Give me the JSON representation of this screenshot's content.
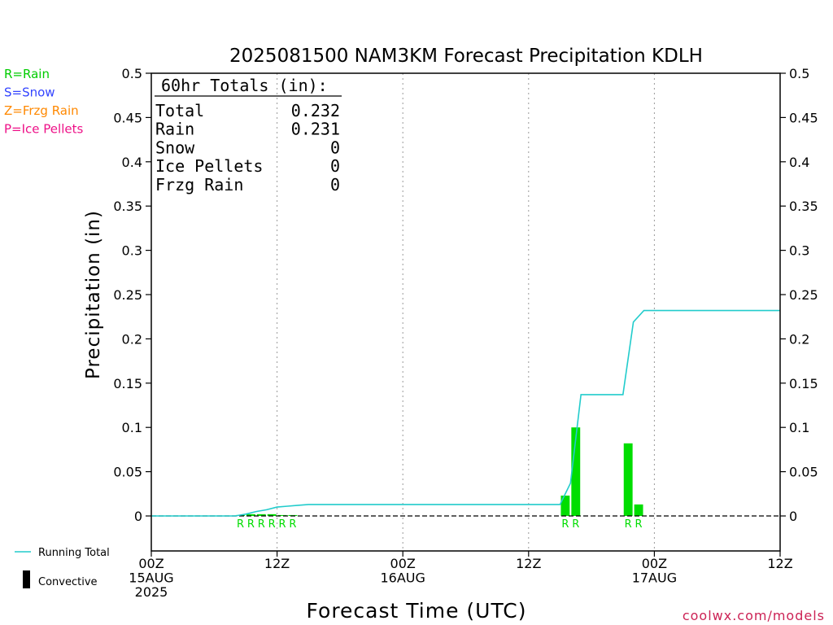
{
  "chart_data": {
    "type": "bar",
    "title": "2025081500 NAM3KM Forecast Precipitation KDLH",
    "xlabel": "Forecast Time (UTC)",
    "ylabel": "Precipitation (in)",
    "ylim": [
      -0.04,
      0.5
    ],
    "yticks": [
      "0.5",
      "0.45",
      "0.4",
      "0.35",
      "0.3",
      "0.25",
      "0.2",
      "0.15",
      "0.1",
      "0.05",
      "0"
    ],
    "ytick_values": [
      0.5,
      0.45,
      0.4,
      0.35,
      0.3,
      0.25,
      0.2,
      0.15,
      0.1,
      0.05,
      0
    ],
    "xlim_hours": [
      0,
      60
    ],
    "xticks": [
      {
        "hour": 0,
        "lines": [
          "00Z",
          "15AUG",
          "2025"
        ]
      },
      {
        "hour": 12,
        "lines": [
          "12Z"
        ]
      },
      {
        "hour": 24,
        "lines": [
          "00Z",
          "16AUG"
        ]
      },
      {
        "hour": 36,
        "lines": [
          "12Z"
        ]
      },
      {
        "hour": 48,
        "lines": [
          "00Z",
          "17AUG"
        ]
      },
      {
        "hour": 60,
        "lines": [
          "12Z"
        ]
      }
    ],
    "grid": "vertical dotted at 12Z/00Z",
    "type_legend": [
      {
        "label": "R=Rain",
        "color": "#00cc00"
      },
      {
        "label": "S=Snow",
        "color": "#3344ff"
      },
      {
        "label": "Z=Frzg Rain",
        "color": "#ff8800"
      },
      {
        "label": "P=Ice Pellets",
        "color": "#ee1188"
      }
    ],
    "series_legend": [
      {
        "label": "Running Total",
        "color": "#22cccc",
        "kind": "line"
      },
      {
        "label": "Convective",
        "color": "#000000",
        "kind": "bar"
      }
    ],
    "totals": {
      "header": "60hr Totals (in):",
      "rows": [
        {
          "label": "Total",
          "value": "0.232"
        },
        {
          "label": "Rain",
          "value": "0.231"
        },
        {
          "label": "Snow",
          "value": "0"
        },
        {
          "label": "Ice Pellets",
          "value": "0"
        },
        {
          "label": "Frzg Rain",
          "value": "0"
        }
      ]
    },
    "series": [
      {
        "name": "Rain",
        "kind": "bar",
        "color": "#00dd00",
        "hours": [
          9,
          10,
          11,
          12,
          13,
          14,
          40,
          41,
          46,
          47
        ],
        "values": [
          0.001,
          0.002,
          0.002,
          0.002,
          0.001,
          0.001,
          0.023,
          0.1,
          0.082,
          0.013
        ],
        "type_labels": [
          "R",
          "R",
          "R",
          "R",
          "R",
          "R",
          "R",
          "R",
          "R",
          "R"
        ]
      },
      {
        "name": "Running Total",
        "kind": "line",
        "color": "#22cccc",
        "points": [
          [
            0,
            0
          ],
          [
            8,
            0
          ],
          [
            9,
            0.002
          ],
          [
            10,
            0.005
          ],
          [
            11,
            0.007
          ],
          [
            12,
            0.01
          ],
          [
            13,
            0.011
          ],
          [
            14,
            0.012
          ],
          [
            15,
            0.013
          ],
          [
            39,
            0.013
          ],
          [
            40,
            0.037
          ],
          [
            41,
            0.137
          ],
          [
            44,
            0.137
          ],
          [
            45,
            0.137
          ],
          [
            46,
            0.219
          ],
          [
            47,
            0.232
          ],
          [
            60,
            0.232
          ]
        ]
      }
    ]
  },
  "footer": {
    "credit": "coolwx.com/models"
  }
}
